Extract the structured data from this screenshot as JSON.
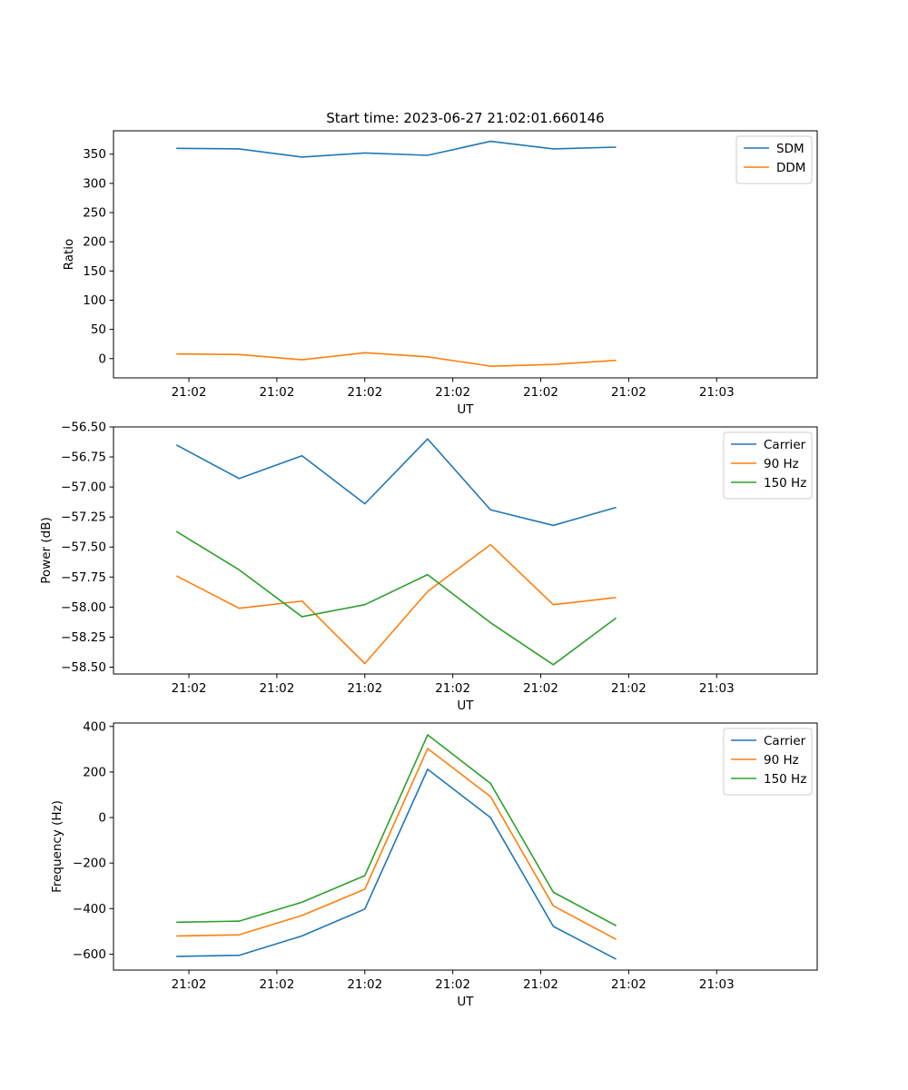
{
  "figure": {
    "title": "Start time: 2023-06-27 21:02:01.660146",
    "background": "#ffffff"
  },
  "chart_data": [
    {
      "type": "line",
      "title": "Start time: 2023-06-27 21:02:01.660146",
      "xlabel": "UT",
      "ylabel": "Ratio",
      "x_ticks": [
        "21:02",
        "21:02",
        "21:02",
        "21:02",
        "21:02",
        "21:02",
        "21:03"
      ],
      "x": [
        1,
        2,
        3,
        4,
        5,
        6,
        7,
        8
      ],
      "xlim": [
        0,
        11.2
      ],
      "ylim": [
        -33,
        390
      ],
      "y_ticks": [
        0,
        50,
        100,
        150,
        200,
        250,
        300,
        350
      ],
      "y_tick_labels": [
        "0",
        "50",
        "100",
        "150",
        "200",
        "250",
        "300",
        "350"
      ],
      "legend_position": "top-right",
      "grid": false,
      "series": [
        {
          "name": "SDM",
          "color": "#1f77b4",
          "values": [
            360,
            359,
            345,
            352,
            348,
            372,
            359,
            362
          ]
        },
        {
          "name": "DDM",
          "color": "#ff7f0e",
          "values": [
            8,
            7,
            -2,
            10,
            3,
            -13,
            -10,
            -3
          ]
        }
      ]
    },
    {
      "type": "line",
      "xlabel": "UT",
      "ylabel": "Power (dB)",
      "x_ticks": [
        "21:02",
        "21:02",
        "21:02",
        "21:02",
        "21:02",
        "21:02",
        "21:03"
      ],
      "x": [
        1,
        2,
        3,
        4,
        5,
        6,
        7,
        8
      ],
      "xlim": [
        0,
        11.2
      ],
      "ylim": [
        -58.557,
        -56.5
      ],
      "y_ticks": [
        -56.5,
        -56.75,
        -57.0,
        -57.25,
        -57.5,
        -57.75,
        -58.0,
        -58.25,
        -58.5
      ],
      "y_tick_labels": [
        "−56.50",
        "−56.75",
        "−57.00",
        "−57.25",
        "−57.50",
        "−57.75",
        "−58.00",
        "−58.25",
        "−58.50"
      ],
      "legend_position": "top-right",
      "grid": false,
      "series": [
        {
          "name": "Carrier",
          "color": "#1f77b4",
          "values": [
            -56.65,
            -56.93,
            -56.74,
            -57.14,
            -56.6,
            -57.19,
            -57.32,
            -57.17
          ]
        },
        {
          "name": "90 Hz",
          "color": "#ff7f0e",
          "values": [
            -57.74,
            -58.01,
            -57.95,
            -58.47,
            -57.87,
            -57.48,
            -57.98,
            -57.92
          ]
        },
        {
          "name": "150 Hz",
          "color": "#2ca02c",
          "values": [
            -57.37,
            -57.69,
            -58.08,
            -57.98,
            -57.73,
            -58.13,
            -58.48,
            -58.09
          ]
        }
      ]
    },
    {
      "type": "line",
      "xlabel": "UT",
      "ylabel": "Frequency (Hz)",
      "x_ticks": [
        "21:02",
        "21:02",
        "21:02",
        "21:02",
        "21:02",
        "21:02",
        "21:03"
      ],
      "x": [
        1,
        2,
        3,
        4,
        5,
        6,
        7,
        8
      ],
      "xlim": [
        0,
        11.2
      ],
      "ylim": [
        -670,
        415
      ],
      "y_ticks": [
        -600,
        -400,
        -200,
        0,
        200,
        400
      ],
      "y_tick_labels": [
        "−600",
        "−400",
        "−200",
        "0",
        "200",
        "400"
      ],
      "legend_position": "top-right",
      "grid": false,
      "series": [
        {
          "name": "Carrier",
          "color": "#1f77b4",
          "values": [
            -610,
            -605,
            -520,
            -402,
            212,
            0,
            -478,
            -622
          ]
        },
        {
          "name": "90 Hz",
          "color": "#ff7f0e",
          "values": [
            -520,
            -515,
            -430,
            -315,
            303,
            92,
            -388,
            -535
          ]
        },
        {
          "name": "150 Hz",
          "color": "#2ca02c",
          "values": [
            -460,
            -455,
            -372,
            -255,
            363,
            150,
            -328,
            -475
          ]
        }
      ]
    }
  ]
}
